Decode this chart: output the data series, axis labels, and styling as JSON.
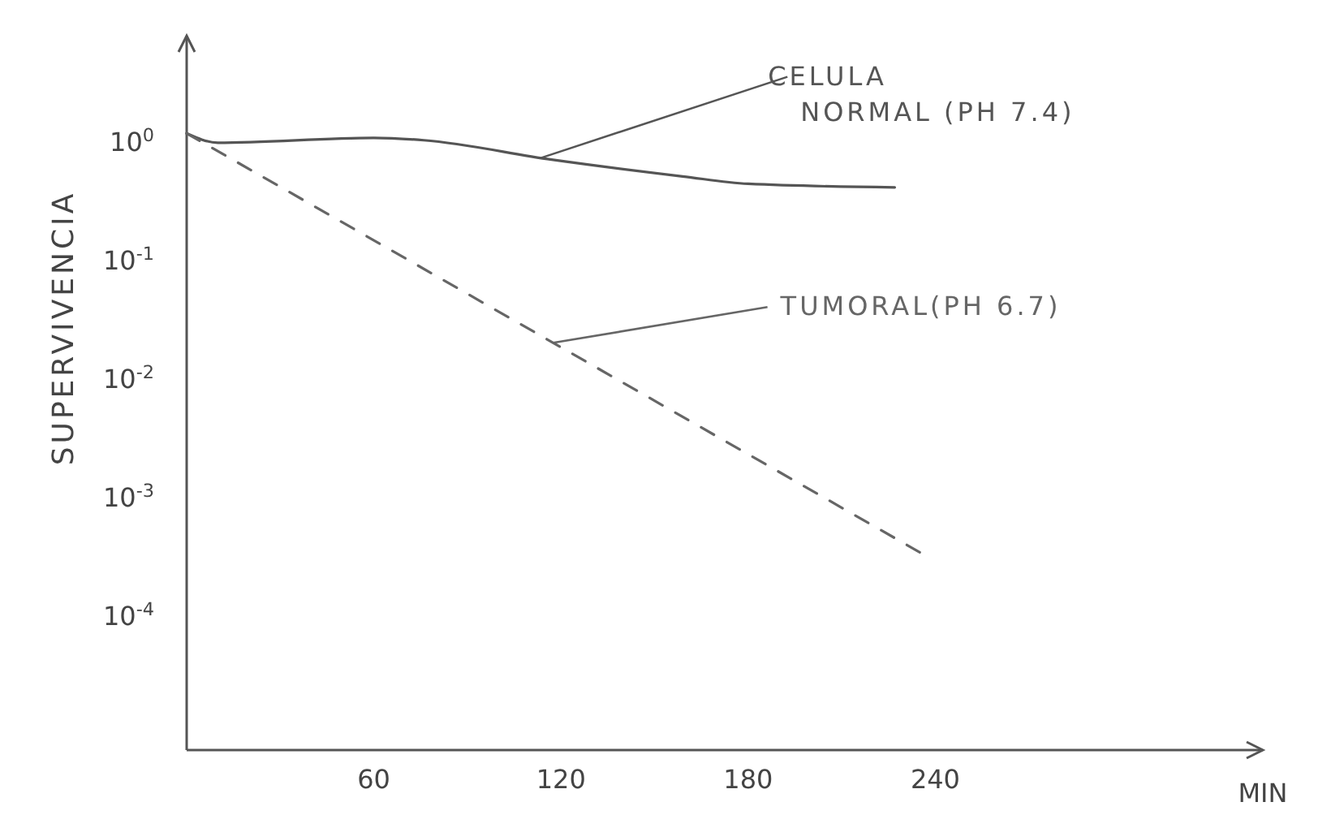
{
  "chart_data": {
    "type": "line",
    "ylabel": "SUPERVIVENCIA",
    "xlabel": "MIN",
    "log": "y",
    "xlim": [
      0,
      345
    ],
    "xticks": [
      60,
      120,
      180,
      240
    ],
    "ylim": [
      7.5e-06,
      8
    ],
    "yticks": [
      {
        "value": 1,
        "label": "10$^{0}$"
      },
      {
        "value": 0.1,
        "label": "10$^{-1}$"
      },
      {
        "value": 0.01,
        "label": "10$^{-2}$"
      },
      {
        "value": 0.001,
        "label": "10$^{-3}$"
      },
      {
        "value": 0.0001,
        "label": "10$^{-4}$"
      }
    ],
    "series": [
      {
        "name": "CELULA\nNORMAL (PH 7.4)",
        "color": "#555555",
        "line_style": "solid",
        "x": [
          0,
          10,
          60,
          76,
          117,
          159,
          180,
          227
        ],
        "values": [
          1.2,
          1.0,
          1.1,
          1.05,
          0.72,
          0.52,
          0.45,
          0.42
        ]
      },
      {
        "name": "TUMORAL(PH 6.7)",
        "color": "#666666",
        "line_style": "dashed",
        "x": [
          0,
          235
        ],
        "values": [
          1.2,
          0.00035
        ]
      }
    ]
  }
}
